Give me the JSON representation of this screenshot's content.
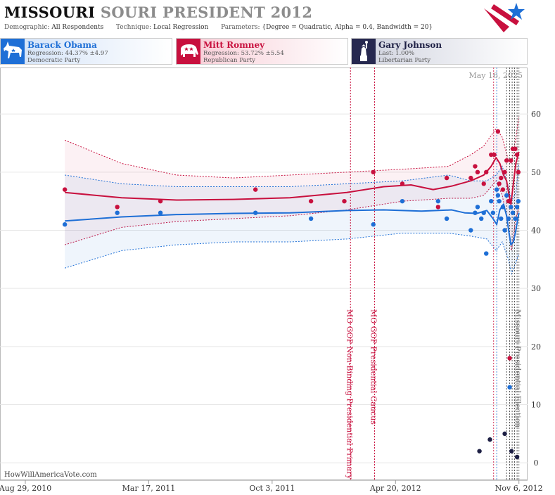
{
  "header": {
    "title_state": "MISSOURI",
    "title_rest": "SOURI PRESIDENT 2012",
    "demographic_label": "Demographic:",
    "demographic_value": "All Respondents",
    "technique_label": "Technique:",
    "technique_value": "Local Regression",
    "parameters_label": "Parameters:",
    "parameters_value": "{Degree = Quadratic, Alpha = 0.4, Bandwidth = 20}",
    "logo_icon": "star-stripes-logo-icon"
  },
  "candidates": [
    {
      "name": "Barack Obama",
      "line2": "Regression: 44.37% ±4.97",
      "line3": "Democratic Party",
      "color": "#1e6fd6",
      "icon": "donkey-icon"
    },
    {
      "name": "Mitt Romney",
      "line2": "Regression: 53.72% ±5.54",
      "line3": "Republican Party",
      "color": "#c8103e",
      "icon": "elephant-icon"
    },
    {
      "name": "Gary Johnson",
      "line2": "Last: 1.00%",
      "line3": "Libertarian Party",
      "color": "#26284f",
      "icon": "liberty-statue-icon"
    }
  ],
  "chart_data": {
    "type": "scatter",
    "date_stamp": "May 16, 2025",
    "watermark": "HowWillAmericaVote.com",
    "ylim": [
      -3,
      68
    ],
    "y_ticks": [
      0,
      10,
      20,
      30,
      40,
      50,
      60
    ],
    "x_range": [
      "2010-08-29",
      "2012-11-20"
    ],
    "x_ticks": [
      {
        "date": "2010-08-29",
        "label": "Aug 29, 2010"
      },
      {
        "date": "2011-03-17",
        "label": "Mar 17, 2011"
      },
      {
        "date": "2011-10-03",
        "label": "Oct 3, 2011"
      },
      {
        "date": "2012-04-20",
        "label": "Apr 20, 2012"
      },
      {
        "date": "2012-11-06",
        "label": "Nov 6, 2012"
      }
    ],
    "events": [
      {
        "date": "2012-02-07",
        "label": "MO GOP Non-Binding Presidential Primary",
        "color": "#c8103e"
      },
      {
        "date": "2012-03-17",
        "label": "MO GOP Presidential Caucus",
        "color": "#c8103e"
      },
      {
        "date": "2012-11-06",
        "label": "Missouri Presidential Election",
        "color": "#777777"
      }
    ],
    "poll_lines": [
      {
        "date": "2012-09-26",
        "color": "#c8103e"
      },
      {
        "date": "2012-10-01",
        "color": "#1e6fd6"
      },
      {
        "date": "2012-10-17",
        "color": "#333333"
      },
      {
        "date": "2012-10-22",
        "color": "#333333"
      },
      {
        "date": "2012-10-26",
        "color": "#333333"
      },
      {
        "date": "2012-10-30",
        "color": "#333333"
      },
      {
        "date": "2012-11-03",
        "color": "#333333"
      }
    ],
    "series": [
      {
        "name": "Mitt Romney",
        "color": "#c8103e",
        "points": [
          [
            "2010-11-01",
            47
          ],
          [
            "2011-01-25",
            44
          ],
          [
            "2011-04-05",
            45
          ],
          [
            "2011-09-06",
            47
          ],
          [
            "2011-12-05",
            45
          ],
          [
            "2012-01-28",
            45
          ],
          [
            "2012-03-15",
            50
          ],
          [
            "2012-05-01",
            48
          ],
          [
            "2012-06-28",
            44
          ],
          [
            "2012-07-12",
            49
          ],
          [
            "2012-08-20",
            49
          ],
          [
            "2012-08-27",
            51
          ],
          [
            "2012-08-31",
            50
          ],
          [
            "2012-09-10",
            48
          ],
          [
            "2012-09-14",
            50
          ],
          [
            "2012-09-22",
            53
          ],
          [
            "2012-09-27",
            53
          ],
          [
            "2012-10-03",
            57
          ],
          [
            "2012-10-05",
            48
          ],
          [
            "2012-10-08",
            49
          ],
          [
            "2012-10-11",
            47
          ],
          [
            "2012-10-14",
            50
          ],
          [
            "2012-10-17",
            52
          ],
          [
            "2012-10-20",
            45
          ],
          [
            "2012-10-22",
            18
          ],
          [
            "2012-10-24",
            52
          ],
          [
            "2012-10-27",
            54
          ],
          [
            "2012-10-31",
            54
          ],
          [
            "2012-11-03",
            53
          ],
          [
            "2012-11-05",
            50
          ]
        ],
        "fit": [
          [
            "2010-11-01",
            46.5
          ],
          [
            "2011-02-01",
            45.6
          ],
          [
            "2011-05-01",
            45.2
          ],
          [
            "2011-08-01",
            45.3
          ],
          [
            "2011-11-01",
            45.6
          ],
          [
            "2012-02-01",
            46.5
          ],
          [
            "2012-04-01",
            47.5
          ],
          [
            "2012-05-15",
            47.8
          ],
          [
            "2012-06-20",
            47.0
          ],
          [
            "2012-07-20",
            47.6
          ],
          [
            "2012-08-20",
            48.5
          ],
          [
            "2012-09-10",
            49.5
          ],
          [
            "2012-09-22",
            51.0
          ],
          [
            "2012-09-30",
            52.5
          ],
          [
            "2012-10-06",
            51.5
          ],
          [
            "2012-10-12",
            49.5
          ],
          [
            "2012-10-17",
            48.5
          ],
          [
            "2012-10-21",
            46.0
          ],
          [
            "2012-10-24",
            44.5
          ],
          [
            "2012-10-28",
            48.0
          ],
          [
            "2012-11-01",
            51.5
          ],
          [
            "2012-11-06",
            53.5
          ]
        ],
        "band": [
          [
            "2010-11-01",
            37.5,
            55.5
          ],
          [
            "2011-02-01",
            40.5,
            51.5
          ],
          [
            "2011-05-01",
            41.5,
            49.5
          ],
          [
            "2011-08-01",
            42.0,
            49.0
          ],
          [
            "2011-11-01",
            42.5,
            49.5
          ],
          [
            "2012-02-01",
            43.5,
            50.0
          ],
          [
            "2012-05-01",
            45.0,
            50.5
          ],
          [
            "2012-07-15",
            45.5,
            51.0
          ],
          [
            "2012-08-20",
            45.5,
            53.0
          ],
          [
            "2012-09-10",
            46.0,
            54.5
          ],
          [
            "2012-09-30",
            48.5,
            57.5
          ],
          [
            "2012-10-10",
            46.0,
            56.0
          ],
          [
            "2012-10-20",
            40.5,
            52.0
          ],
          [
            "2012-10-25",
            36.5,
            51.5
          ],
          [
            "2012-11-01",
            42.0,
            56.0
          ],
          [
            "2012-11-06",
            44.0,
            59.5
          ]
        ]
      },
      {
        "name": "Barack Obama",
        "color": "#1e6fd6",
        "points": [
          [
            "2010-11-01",
            41
          ],
          [
            "2011-01-25",
            43
          ],
          [
            "2011-04-05",
            43
          ],
          [
            "2011-09-06",
            43
          ],
          [
            "2011-12-05",
            42
          ],
          [
            "2012-03-15",
            41
          ],
          [
            "2012-05-01",
            45
          ],
          [
            "2012-06-28",
            45
          ],
          [
            "2012-07-12",
            42
          ],
          [
            "2012-08-20",
            40
          ],
          [
            "2012-08-27",
            43
          ],
          [
            "2012-08-31",
            44
          ],
          [
            "2012-09-06",
            42
          ],
          [
            "2012-09-10",
            43
          ],
          [
            "2012-09-14",
            36
          ],
          [
            "2012-09-22",
            45
          ],
          [
            "2012-09-25",
            43
          ],
          [
            "2012-10-01",
            47
          ],
          [
            "2012-10-03",
            46
          ],
          [
            "2012-10-05",
            45
          ],
          [
            "2012-10-08",
            42
          ],
          [
            "2012-10-11",
            44
          ],
          [
            "2012-10-14",
            40
          ],
          [
            "2012-10-17",
            46
          ],
          [
            "2012-10-20",
            42
          ],
          [
            "2012-10-22",
            13
          ],
          [
            "2012-10-24",
            44
          ],
          [
            "2012-10-27",
            43
          ],
          [
            "2012-10-31",
            42
          ],
          [
            "2012-11-03",
            44
          ],
          [
            "2012-11-05",
            45
          ]
        ],
        "fit": [
          [
            "2010-11-01",
            41.6
          ],
          [
            "2011-02-01",
            42.3
          ],
          [
            "2011-05-01",
            42.7
          ],
          [
            "2011-08-01",
            42.9
          ],
          [
            "2011-11-01",
            43.0
          ],
          [
            "2012-02-01",
            43.4
          ],
          [
            "2012-04-01",
            43.5
          ],
          [
            "2012-06-01",
            43.3
          ],
          [
            "2012-07-20",
            43.5
          ],
          [
            "2012-08-10",
            43.0
          ],
          [
            "2012-08-30",
            42.9
          ],
          [
            "2012-09-15",
            43.4
          ],
          [
            "2012-09-25",
            42.0
          ],
          [
            "2012-10-01",
            41.0
          ],
          [
            "2012-10-06",
            43.5
          ],
          [
            "2012-10-12",
            44.5
          ],
          [
            "2012-10-17",
            42.5
          ],
          [
            "2012-10-21",
            39.5
          ],
          [
            "2012-10-24",
            37.5
          ],
          [
            "2012-10-28",
            38.0
          ],
          [
            "2012-11-01",
            40.0
          ],
          [
            "2012-11-06",
            43.0
          ]
        ],
        "band": [
          [
            "2010-11-01",
            33.5,
            49.5
          ],
          [
            "2011-02-01",
            36.5,
            48.0
          ],
          [
            "2011-05-01",
            37.5,
            47.5
          ],
          [
            "2011-08-01",
            38.0,
            47.5
          ],
          [
            "2011-11-01",
            38.0,
            47.5
          ],
          [
            "2012-02-01",
            38.5,
            48.0
          ],
          [
            "2012-05-01",
            39.5,
            48.5
          ],
          [
            "2012-07-15",
            39.5,
            49.5
          ],
          [
            "2012-08-20",
            39.0,
            48.5
          ],
          [
            "2012-09-15",
            38.5,
            48.5
          ],
          [
            "2012-09-30",
            36.5,
            49.5
          ],
          [
            "2012-10-10",
            38.0,
            51.0
          ],
          [
            "2012-10-20",
            35.0,
            47.5
          ],
          [
            "2012-10-25",
            32.5,
            45.0
          ],
          [
            "2012-11-01",
            34.5,
            46.5
          ],
          [
            "2012-11-06",
            36.0,
            51.5
          ]
        ]
      },
      {
        "name": "Gary Johnson",
        "color": "#1d1f44",
        "points": [
          [
            "2012-09-03",
            2
          ],
          [
            "2012-09-20",
            4
          ],
          [
            "2012-10-14",
            5
          ],
          [
            "2012-10-25",
            2
          ],
          [
            "2012-11-03",
            1
          ]
        ]
      }
    ]
  }
}
